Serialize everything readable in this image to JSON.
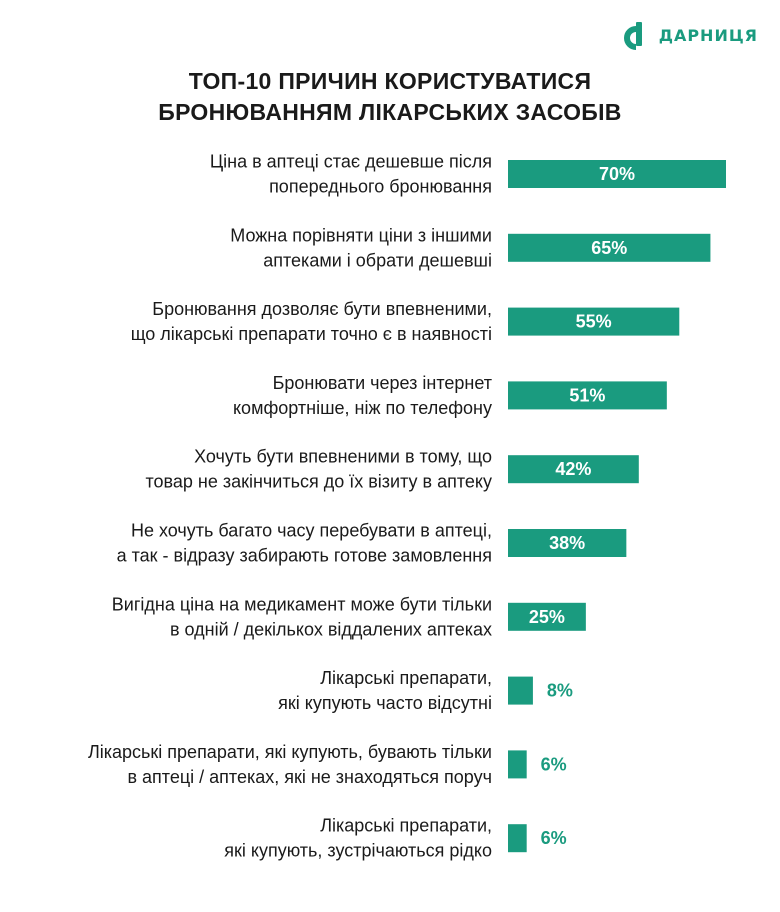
{
  "brand": {
    "name": "ДАРНИЦЯ",
    "color": "#1a9b7f"
  },
  "chart_data": {
    "type": "bar",
    "orientation": "horizontal",
    "title": [
      "ТОП-10 ПРИЧИН КОРИСТУВАТИСЯ",
      "БРОНЮВАННЯМ ЛІКАРСЬКИХ ЗАСОБІВ"
    ],
    "unit": "%",
    "bar_color": "#1a9b7f",
    "xlim": [
      0,
      70
    ],
    "categories": [
      [
        "Ціна в аптеці стає дешевше після",
        "попереднього бронювання"
      ],
      [
        "Можна порівняти ціни з іншими",
        "аптеками і обрати дешевші"
      ],
      [
        "Бронювання дозволяє бути впевненими,",
        "що лікарські препарати точно є в наявності"
      ],
      [
        "Бронювати через інтернет",
        "комфортніше, ніж по телефону"
      ],
      [
        "Хочуть бути впевненими в тому, що",
        "товар не закінчиться до їх візиту в аптеку"
      ],
      [
        "Не хочуть багато часу перебувати в аптеці,",
        "а так - відразу забирають готове замовлення"
      ],
      [
        "Вигідна ціна на медикамент може бути тільки",
        "в одній / декількох віддалених аптеках"
      ],
      [
        "Лікарські препарати,",
        "які купують часто відсутні"
      ],
      [
        "Лікарські препарати, які купують, бувають тільки",
        "в аптеці / аптеках, які не знаходяться поруч"
      ],
      [
        "Лікарські препарати,",
        "які купують, зустрічаються рідко"
      ]
    ],
    "values": [
      70,
      65,
      55,
      51,
      42,
      38,
      25,
      8,
      6,
      6
    ],
    "value_labels": [
      "70%",
      "65%",
      "55%",
      "51%",
      "42%",
      "38%",
      "25%",
      "8%",
      "6%",
      "6%"
    ]
  }
}
